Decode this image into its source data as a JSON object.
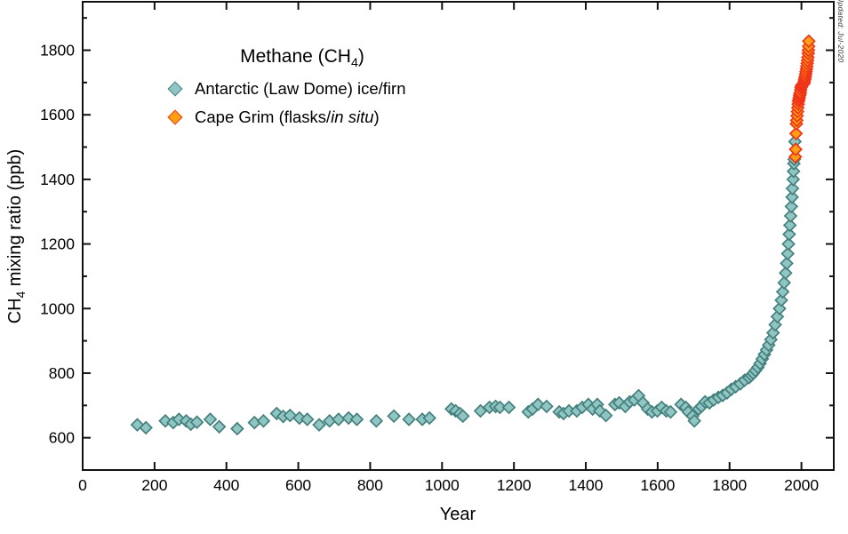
{
  "note": "Updated: Jul-2020",
  "labels": {
    "title_prefix": "Methane (CH",
    "title_sub": "4",
    "title_suffix": ")",
    "ylabel_prefix": "CH",
    "ylabel_sub": "4",
    "ylabel_suffix": " mixing ratio (ppb)",
    "xlabel": "Year"
  },
  "legend": {
    "entries": [
      {
        "label": "Antarctic (Law Dome) ice/firn",
        "marker_fill": "#8fc5c2",
        "marker_stroke": "#45807d"
      },
      {
        "label_prefix": "Cape Grim (flasks/",
        "label_italic": "in situ",
        "label_suffix": ")",
        "marker_fill": "#ffa013",
        "marker_stroke": "#f03418"
      }
    ]
  },
  "chart_data": {
    "type": "scatter",
    "title": "Methane (CH4)",
    "xlabel": "Year",
    "ylabel": "CH4 mixing ratio (ppb)",
    "xlim": [
      0,
      2090
    ],
    "ylim": [
      500,
      1950
    ],
    "grid": false,
    "legend_position": "upper-left-inside",
    "axis_color": "#111111",
    "x_major_ticks": [
      0,
      200,
      400,
      600,
      800,
      1000,
      1200,
      1400,
      1600,
      1800,
      2000
    ],
    "y_major_ticks": [
      600,
      800,
      1000,
      1200,
      1400,
      1600,
      1800
    ],
    "y_minor_ticks": [
      500,
      700,
      900,
      1100,
      1300,
      1500,
      1700,
      1900
    ],
    "marker": "diamond",
    "series": [
      {
        "name": "Antarctic (Law Dome) ice/firn",
        "fill": "#8fc5c2",
        "stroke": "#45807d",
        "points": [
          [
            152,
            640
          ],
          [
            176,
            631
          ],
          [
            230,
            652
          ],
          [
            252,
            647
          ],
          [
            268,
            657
          ],
          [
            288,
            652
          ],
          [
            301,
            642
          ],
          [
            318,
            648
          ],
          [
            355,
            657
          ],
          [
            380,
            634
          ],
          [
            430,
            628
          ],
          [
            478,
            647
          ],
          [
            503,
            652
          ],
          [
            540,
            675
          ],
          [
            558,
            666
          ],
          [
            577,
            669
          ],
          [
            603,
            661
          ],
          [
            625,
            657
          ],
          [
            658,
            640
          ],
          [
            687,
            652
          ],
          [
            712,
            657
          ],
          [
            740,
            661
          ],
          [
            763,
            657
          ],
          [
            817,
            652
          ],
          [
            866,
            667
          ],
          [
            908,
            657
          ],
          [
            945,
            657
          ],
          [
            965,
            661
          ],
          [
            1026,
            689
          ],
          [
            1038,
            683
          ],
          [
            1050,
            675
          ],
          [
            1058,
            667
          ],
          [
            1107,
            683
          ],
          [
            1132,
            694
          ],
          [
            1149,
            697
          ],
          [
            1161,
            694
          ],
          [
            1186,
            694
          ],
          [
            1240,
            680
          ],
          [
            1252,
            689
          ],
          [
            1267,
            703
          ],
          [
            1291,
            697
          ],
          [
            1326,
            680
          ],
          [
            1338,
            675
          ],
          [
            1353,
            683
          ],
          [
            1375,
            683
          ],
          [
            1390,
            694
          ],
          [
            1407,
            703
          ],
          [
            1419,
            689
          ],
          [
            1432,
            703
          ],
          [
            1439,
            683
          ],
          [
            1456,
            669
          ],
          [
            1481,
            703
          ],
          [
            1493,
            708
          ],
          [
            1510,
            697
          ],
          [
            1522,
            711
          ],
          [
            1535,
            717
          ],
          [
            1547,
            730
          ],
          [
            1559,
            708
          ],
          [
            1572,
            689
          ],
          [
            1584,
            680
          ],
          [
            1599,
            683
          ],
          [
            1611,
            694
          ],
          [
            1624,
            683
          ],
          [
            1636,
            680
          ],
          [
            1665,
            703
          ],
          [
            1678,
            694
          ],
          [
            1685,
            680
          ],
          [
            1697,
            667
          ],
          [
            1702,
            652
          ],
          [
            1714,
            689
          ],
          [
            1722,
            697
          ],
          [
            1732,
            711
          ],
          [
            1744,
            708
          ],
          [
            1756,
            717
          ],
          [
            1769,
            725
          ],
          [
            1781,
            731
          ],
          [
            1793,
            739
          ],
          [
            1805,
            750
          ],
          [
            1817,
            758
          ],
          [
            1830,
            767
          ],
          [
            1842,
            778
          ],
          [
            1854,
            786
          ],
          [
            1861,
            793
          ],
          [
            1866,
            800
          ],
          [
            1872,
            808
          ],
          [
            1879,
            818
          ],
          [
            1885,
            830
          ],
          [
            1891,
            844
          ],
          [
            1897,
            858
          ],
          [
            1903,
            872
          ],
          [
            1909,
            887
          ],
          [
            1915,
            904
          ],
          [
            1921,
            925
          ],
          [
            1927,
            950
          ],
          [
            1933,
            975
          ],
          [
            1939,
            1000
          ],
          [
            1944,
            1026
          ],
          [
            1948,
            1052
          ],
          [
            1952,
            1080
          ],
          [
            1956,
            1110
          ],
          [
            1959,
            1140
          ],
          [
            1962,
            1170
          ],
          [
            1964,
            1200
          ],
          [
            1966,
            1230
          ],
          [
            1968,
            1258
          ],
          [
            1970,
            1287
          ],
          [
            1972,
            1316
          ],
          [
            1974,
            1345
          ],
          [
            1975,
            1372
          ],
          [
            1977,
            1400
          ],
          [
            1978,
            1425
          ],
          [
            1979,
            1449
          ],
          [
            1980,
            1462
          ],
          [
            1982,
            1517
          ]
        ]
      },
      {
        "name": "Cape Grim (flasks/in situ)",
        "fill": "#ffa013",
        "stroke": "#f03418",
        "points": [
          [
            1983,
            1470
          ],
          [
            1984,
            1493
          ],
          [
            1985,
            1542
          ],
          [
            1986,
            1572
          ],
          [
            1987,
            1583
          ],
          [
            1988,
            1597
          ],
          [
            1989,
            1610
          ],
          [
            1990,
            1622
          ],
          [
            1991,
            1633
          ],
          [
            1992,
            1642
          ],
          [
            1993,
            1648
          ],
          [
            1994,
            1654
          ],
          [
            1995,
            1660
          ],
          [
            1996,
            1665
          ],
          [
            1997,
            1669
          ],
          [
            1998,
            1677
          ],
          [
            1999,
            1684
          ],
          [
            2000,
            1688
          ],
          [
            2001,
            1690
          ],
          [
            2002,
            1692
          ],
          [
            2003,
            1694
          ],
          [
            2004,
            1694
          ],
          [
            2005,
            1695
          ],
          [
            2006,
            1696
          ],
          [
            2007,
            1699
          ],
          [
            2008,
            1704
          ],
          [
            2009,
            1709
          ],
          [
            2010,
            1714
          ],
          [
            2011,
            1720
          ],
          [
            2012,
            1727
          ],
          [
            2013,
            1734
          ],
          [
            2014,
            1742
          ],
          [
            2015,
            1750
          ],
          [
            2016,
            1759
          ],
          [
            2017,
            1768
          ],
          [
            2018,
            1778
          ],
          [
            2019,
            1790
          ],
          [
            2019.5,
            1800
          ],
          [
            2020,
            1812
          ],
          [
            2020.5,
            1828
          ]
        ]
      }
    ]
  }
}
